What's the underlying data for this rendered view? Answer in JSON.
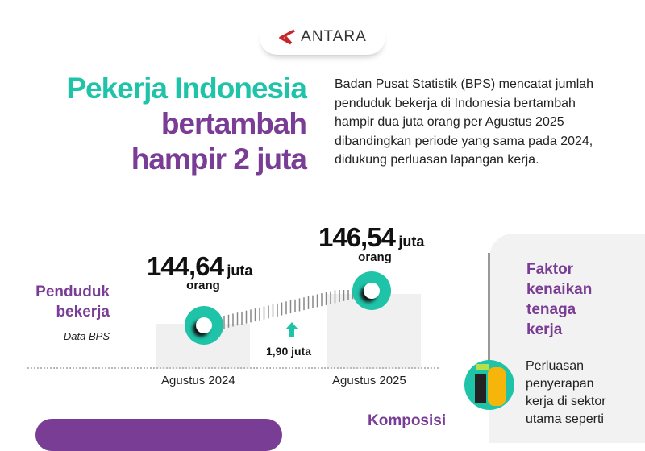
{
  "brand": {
    "logo_text": "ANTARA",
    "accent": "#c62828"
  },
  "title": {
    "line1": "Pekerja Indonesia",
    "line2": "bertambah",
    "line3": "hampir 2 juta"
  },
  "description": "Badan Pusat Statistik (BPS) mencatat jumlah penduduk bekerja di Indonesia bertambah hampir dua juta orang per Agustus 2025 dibandingkan periode yang sama pada 2024, didukung perluasan lapangan kerja.",
  "comparison": {
    "label_line1": "Penduduk",
    "label_line2": "bekerja",
    "source": "Data BPS",
    "items": [
      {
        "period": "Agustus 2024",
        "value": "144,64",
        "unit": "juta",
        "suffix": "orang"
      },
      {
        "period": "Agustus 2025",
        "value": "146,54",
        "unit": "juta",
        "suffix": "orang"
      }
    ],
    "increase": "1,90 juta"
  },
  "composition_title": "Komposisi",
  "factors": {
    "title_lines": [
      "Faktor",
      "kenaikan",
      "tenaga",
      "kerja"
    ],
    "text_lines": [
      "Perluasan",
      "penyerapan",
      "kerja di sektor",
      "utama seperti"
    ]
  },
  "colors": {
    "teal": "#1fc3a8",
    "purple": "#7a3d95"
  }
}
